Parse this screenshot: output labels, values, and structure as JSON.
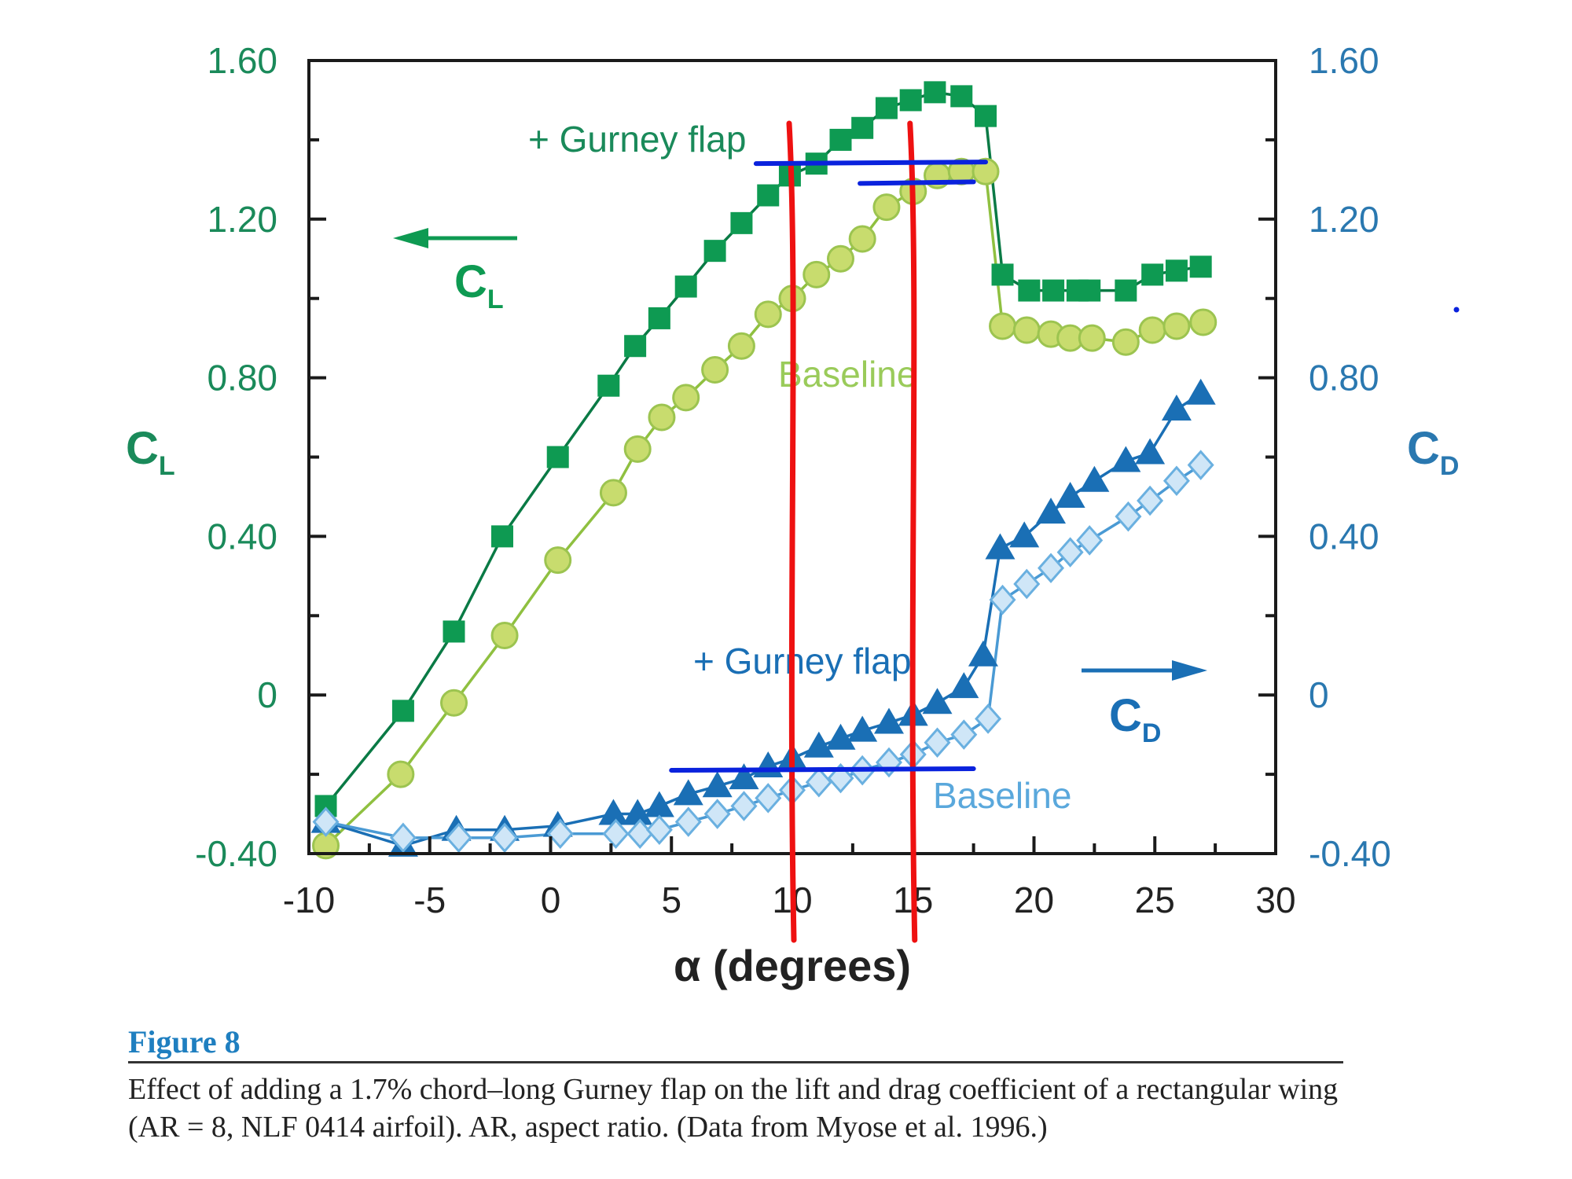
{
  "figure": {
    "title": "Figure 8",
    "caption": "Effect of adding a 1.7% chord–long Gurney flap on the lift and drag coefficient of a rectangular wing (AR = 8, NLF 0414 airfoil). AR, aspect ratio. (Data from Myose et al. 1996.)"
  },
  "chart_data": {
    "type": "line",
    "title": "",
    "xlabel": "α (degrees)",
    "ylabel_left": "CL",
    "ylabel_right": "CD",
    "xlim": [
      -10,
      30
    ],
    "ylim": [
      -0.4,
      1.6
    ],
    "x_ticks": [
      "-10",
      "-5",
      "0",
      "5",
      "10",
      "15",
      "20",
      "25",
      "30"
    ],
    "y_ticks_left": [
      "-0.40",
      "0",
      "0.40",
      "0.80",
      "1.20",
      "1.60"
    ],
    "y_ticks_right": [
      "-0.40",
      "0",
      "0.40",
      "0.80",
      "1.20",
      "1.60"
    ],
    "grid": false,
    "annotations": {
      "cl_gurney": "+ Gurney flap",
      "cl_baseline": "Baseline",
      "cd_gurney": "+ Gurney flap",
      "cd_baseline": "Baseline",
      "cl_arrow_label": "C",
      "cl_arrow_sub": "L",
      "cd_arrow_label": "C",
      "cd_arrow_sub": "D"
    },
    "series": [
      {
        "name": "CL + Gurney flap",
        "axis": "left",
        "marker": "square",
        "color": "#0e9a52",
        "x": [
          -9.3,
          -6.1,
          -4.0,
          -2.0,
          0.3,
          2.4,
          3.5,
          4.5,
          5.6,
          6.8,
          7.9,
          9.0,
          9.9,
          11.0,
          12.0,
          12.9,
          13.9,
          14.9,
          15.9,
          17.0,
          18.0,
          18.7,
          19.8,
          20.8,
          21.8,
          22.3,
          23.8,
          24.9,
          25.9,
          26.9
        ],
        "y": [
          -0.28,
          -0.04,
          0.16,
          0.4,
          0.6,
          0.78,
          0.88,
          0.95,
          1.03,
          1.12,
          1.19,
          1.26,
          1.31,
          1.34,
          1.4,
          1.43,
          1.48,
          1.5,
          1.52,
          1.51,
          1.46,
          1.06,
          1.02,
          1.02,
          1.02,
          1.02,
          1.02,
          1.06,
          1.07,
          1.08
        ]
      },
      {
        "name": "CL Baseline",
        "axis": "left",
        "marker": "circle",
        "color": "#c8dc6e",
        "x": [
          -9.3,
          -6.2,
          -4.0,
          -1.9,
          0.3,
          2.6,
          3.6,
          4.6,
          5.6,
          6.8,
          7.9,
          9.0,
          10.0,
          11.0,
          12.0,
          12.9,
          13.9,
          15.0,
          16.0,
          17.0,
          18.0,
          18.7,
          19.7,
          20.7,
          21.5,
          22.4,
          23.8,
          24.9,
          25.9,
          27.0
        ],
        "y": [
          -0.38,
          -0.2,
          -0.02,
          0.15,
          0.34,
          0.51,
          0.62,
          0.7,
          0.75,
          0.82,
          0.88,
          0.96,
          1.0,
          1.06,
          1.1,
          1.15,
          1.23,
          1.27,
          1.31,
          1.32,
          1.32,
          0.93,
          0.92,
          0.91,
          0.9,
          0.9,
          0.89,
          0.92,
          0.93,
          0.94
        ]
      },
      {
        "name": "CD + Gurney flap",
        "axis": "right",
        "marker": "triangle",
        "color": "#1a6fb5",
        "x": [
          -9.3,
          -6.1,
          -3.9,
          -1.9,
          0.3,
          2.6,
          3.6,
          4.5,
          5.7,
          6.9,
          8.0,
          9.0,
          10.0,
          11.1,
          12.0,
          12.9,
          14.0,
          15.0,
          16.0,
          17.1,
          17.9,
          18.6,
          19.6,
          20.7,
          21.5,
          22.5,
          23.8,
          24.8,
          25.9,
          26.9
        ],
        "y": [
          -0.32,
          -0.38,
          -0.34,
          -0.34,
          -0.33,
          -0.3,
          -0.3,
          -0.28,
          -0.25,
          -0.23,
          -0.21,
          -0.18,
          -0.16,
          -0.13,
          -0.11,
          -0.09,
          -0.07,
          -0.05,
          -0.02,
          0.02,
          0.1,
          0.37,
          0.4,
          0.46,
          0.5,
          0.54,
          0.59,
          0.61,
          0.72,
          0.76
        ]
      },
      {
        "name": "CD Baseline",
        "axis": "right",
        "marker": "diamond",
        "color": "#6ab0e0",
        "x": [
          -9.3,
          -6.1,
          -3.8,
          -1.9,
          0.4,
          2.7,
          3.7,
          4.5,
          5.7,
          6.9,
          8.0,
          9.0,
          10.0,
          11.1,
          12.0,
          12.9,
          14.0,
          15.0,
          16.0,
          17.1,
          18.1,
          18.7,
          19.7,
          20.7,
          21.5,
          22.3,
          23.9,
          24.8,
          25.9,
          26.9
        ],
        "y": [
          -0.32,
          -0.36,
          -0.36,
          -0.36,
          -0.35,
          -0.35,
          -0.35,
          -0.34,
          -0.32,
          -0.3,
          -0.28,
          -0.26,
          -0.24,
          -0.22,
          -0.21,
          -0.19,
          -0.17,
          -0.15,
          -0.12,
          -0.1,
          -0.06,
          0.24,
          0.28,
          0.32,
          0.36,
          0.39,
          0.45,
          0.49,
          0.54,
          0.58
        ]
      }
    ],
    "hand_annotations": {
      "red_vertical_lines_at_alpha": [
        10,
        15
      ],
      "blue_horizontal_lines": [
        {
          "x_from": 8.5,
          "x_to": 18.0,
          "value": 1.34
        },
        {
          "x_from": 12.8,
          "x_to": 17.5,
          "value": 1.29
        },
        {
          "x_from": 5.0,
          "x_to": 17.5,
          "value": -0.19
        }
      ]
    }
  }
}
